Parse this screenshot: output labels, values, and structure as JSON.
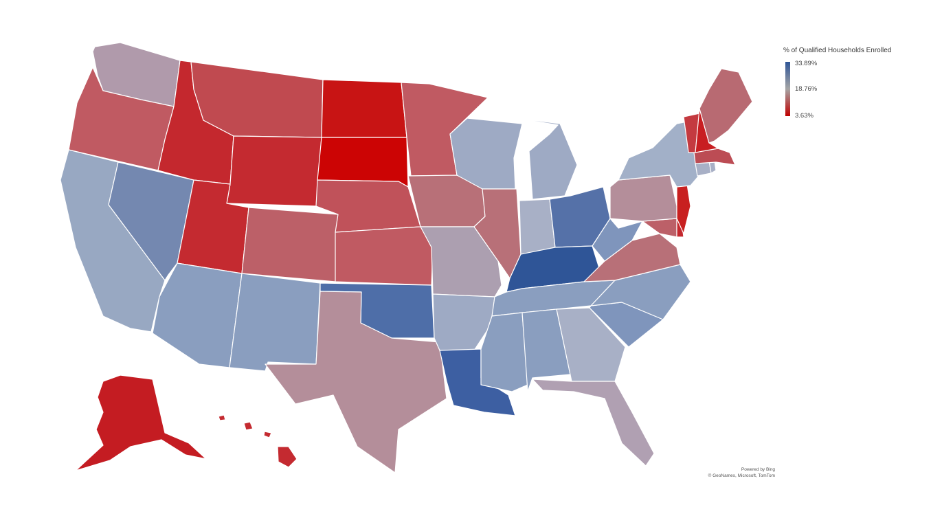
{
  "legend": {
    "title": "% of Qualified Households Enrolled",
    "max_label": "33.89%",
    "mid_label": "18.76%",
    "min_label": "3.63%",
    "max_value": 33.89,
    "mid_value": 18.76,
    "min_value": 3.63,
    "color_max": "#2f5597",
    "color_mid": "#a5a5a5",
    "color_min": "#c00000"
  },
  "attribution": {
    "line1": "Powered by Bing",
    "line2": "© GeoNames, Microsoft, TomTom"
  },
  "states": [
    {
      "id": "WA",
      "color": "#b09aab"
    },
    {
      "id": "OR",
      "color": "#c05a62"
    },
    {
      "id": "CA",
      "color": "#98a8c2"
    },
    {
      "id": "NV",
      "color": "#7488b0"
    },
    {
      "id": "ID",
      "color": "#c4282e"
    },
    {
      "id": "MT",
      "color": "#c04a50"
    },
    {
      "id": "WY",
      "color": "#c42a30"
    },
    {
      "id": "UT",
      "color": "#c42a30"
    },
    {
      "id": "AZ",
      "color": "#8a9ebf"
    },
    {
      "id": "CO",
      "color": "#bc6068"
    },
    {
      "id": "NM",
      "color": "#8a9ebf"
    },
    {
      "id": "ND",
      "color": "#c81414"
    },
    {
      "id": "SD",
      "color": "#cc0404"
    },
    {
      "id": "NE",
      "color": "#c0525a"
    },
    {
      "id": "KS",
      "color": "#c05a62"
    },
    {
      "id": "OK",
      "color": "#4e6ea8"
    },
    {
      "id": "TX",
      "color": "#b48e9a"
    },
    {
      "id": "MN",
      "color": "#c05a62"
    },
    {
      "id": "IA",
      "color": "#b87078"
    },
    {
      "id": "MO",
      "color": "#ac9fb0"
    },
    {
      "id": "AR",
      "color": "#9eaac4"
    },
    {
      "id": "LA",
      "color": "#3d5fa2"
    },
    {
      "id": "WI",
      "color": "#9eaac4"
    },
    {
      "id": "IL",
      "color": "#b87078"
    },
    {
      "id": "MI",
      "color": "#9eaac4"
    },
    {
      "id": "IN",
      "color": "#a8b0c6"
    },
    {
      "id": "OH",
      "color": "#5571a8"
    },
    {
      "id": "KY",
      "color": "#2f5597"
    },
    {
      "id": "TN",
      "color": "#8a9ebf"
    },
    {
      "id": "MS",
      "color": "#8a9ebf"
    },
    {
      "id": "AL",
      "color": "#8a9ebf"
    },
    {
      "id": "GA",
      "color": "#a8b0c6"
    },
    {
      "id": "FL",
      "color": "#b0a0b2"
    },
    {
      "id": "SC",
      "color": "#7f95bc"
    },
    {
      "id": "NC",
      "color": "#8a9ebf"
    },
    {
      "id": "VA",
      "color": "#b87078"
    },
    {
      "id": "WV",
      "color": "#7f95bc"
    },
    {
      "id": "MD",
      "color": "#bc6068"
    },
    {
      "id": "DE",
      "color": "#c4282e"
    },
    {
      "id": "PA",
      "color": "#b48e9a"
    },
    {
      "id": "NJ",
      "color": "#c82020"
    },
    {
      "id": "NY",
      "color": "#a2b0c8"
    },
    {
      "id": "CT",
      "color": "#a8b0c6"
    },
    {
      "id": "RI",
      "color": "#a8b0c6"
    },
    {
      "id": "MA",
      "color": "#bc4c54"
    },
    {
      "id": "VT",
      "color": "#c43a40"
    },
    {
      "id": "NH",
      "color": "#c81e22"
    },
    {
      "id": "ME",
      "color": "#b86a72"
    },
    {
      "id": "AK",
      "color": "#c41c22"
    },
    {
      "id": "HI",
      "color": "#c42a30"
    }
  ]
}
